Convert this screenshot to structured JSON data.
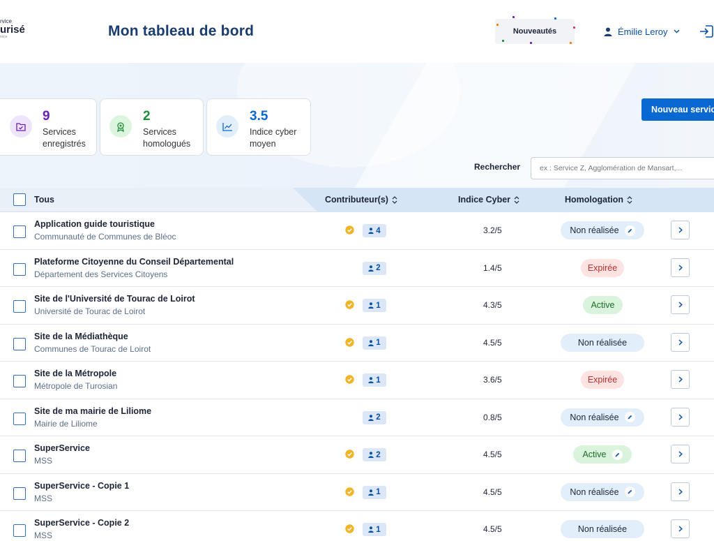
{
  "header": {
    "logo_line1": "rvice",
    "logo_line2": "urisé",
    "logo_line3": "rvice",
    "title": "Mon tableau de bord",
    "news_button": "Nouveautés",
    "user_name": "Émilie Leroy"
  },
  "stats": [
    {
      "value": "9",
      "label_line1": "Services",
      "label_line2": "enregistrés",
      "color": "#6a1fb5"
    },
    {
      "value": "2",
      "label_line1": "Services",
      "label_line2": "homologués",
      "color": "#1f8d3a"
    },
    {
      "value": "3.5",
      "label_line1": "Indice cyber",
      "label_line2": "moyen",
      "color": "#0a68d3"
    }
  ],
  "actions": {
    "new_service": "Nouveau service"
  },
  "search": {
    "label": "Rechercher",
    "placeholder": "ex : Service Z, Agglomération de Mansart,..."
  },
  "table": {
    "columns": {
      "all": "Tous",
      "contributors": "Contributeur(s)",
      "cyber": "Indice Cyber",
      "homologation": "Homologation"
    },
    "rows": [
      {
        "name": "Application guide touristique",
        "org": "Communauté de Communes de Bléoc",
        "owner": true,
        "contributors": "4",
        "score": "3.2/5",
        "status": "Non réalisée",
        "status_type": "none",
        "editable": true
      },
      {
        "name": "Plateforme Citoyenne du Conseil Départemental",
        "org": "Département des Services Citoyens",
        "owner": false,
        "contributors": "2",
        "score": "1.4/5",
        "status": "Expirée",
        "status_type": "exp",
        "editable": false
      },
      {
        "name": "Site de l'Université de Tourac de Loirot",
        "org": "Université de Tourac de Loirot",
        "owner": true,
        "contributors": "1",
        "score": "4.3/5",
        "status": "Active",
        "status_type": "act",
        "editable": false
      },
      {
        "name": "Site de la Médiathèque",
        "org": "Communes de Tourac de Loirot",
        "owner": true,
        "contributors": "1",
        "score": "4.5/5",
        "status": "Non réalisée",
        "status_type": "none",
        "editable": false
      },
      {
        "name": "Site de la Métropole",
        "org": "Métropole de Turosian",
        "owner": true,
        "contributors": "1",
        "score": "3.6/5",
        "status": "Expirée",
        "status_type": "exp",
        "editable": false
      },
      {
        "name": "Site de ma mairie de Liliome",
        "org": "Mairie de Liliome",
        "owner": false,
        "contributors": "2",
        "score": "0.8/5",
        "status": "Non réalisée",
        "status_type": "none",
        "editable": true
      },
      {
        "name": "SuperService",
        "org": "MSS",
        "owner": true,
        "contributors": "2",
        "score": "4.5/5",
        "status": "Active",
        "status_type": "act",
        "editable": true
      },
      {
        "name": "SuperService - Copie 1",
        "org": "MSS",
        "owner": true,
        "contributors": "1",
        "score": "4.5/5",
        "status": "Non réalisée",
        "status_type": "none",
        "editable": true
      },
      {
        "name": "SuperService - Copie 2",
        "org": "MSS",
        "owner": true,
        "contributors": "1",
        "score": "4.5/5",
        "status": "Non réalisée",
        "status_type": "none",
        "editable": false
      }
    ]
  }
}
